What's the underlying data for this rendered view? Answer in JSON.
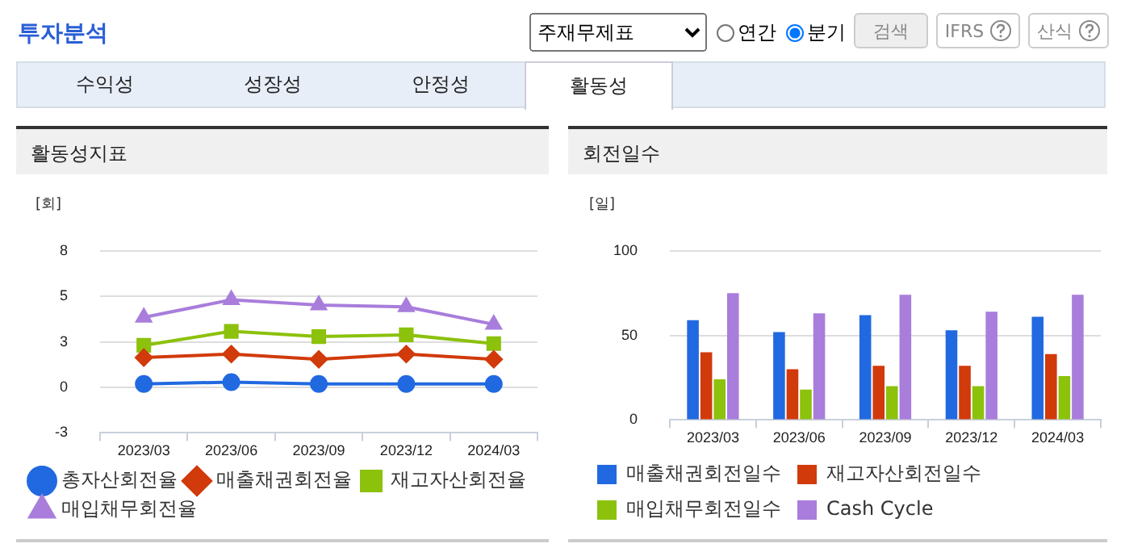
{
  "chart_data": [
    {
      "type": "line",
      "title": "활동성지표",
      "ylabel": "[회]",
      "annotations": [
        "투자분석",
        "주재무제표",
        "연간",
        "분기",
        "검색",
        "IFRS",
        "산식",
        "수익성",
        "성장성",
        "안정성",
        "활동성"
      ],
      "categories": [
        "2023/03",
        "2023/06",
        "2023/09",
        "2023/12",
        "2024/03"
      ],
      "series": [
        {
          "name": "총자산회전율",
          "color": "#2169e0",
          "marker": "circle",
          "values": [
            0.2,
            0.3,
            0.2,
            0.2,
            0.2
          ]
        },
        {
          "name": "매출채권회전율",
          "color": "#d13a0a",
          "marker": "diamond",
          "values": [
            1.7,
            1.9,
            1.6,
            1.9,
            1.6
          ]
        },
        {
          "name": "재고자산회전율",
          "color": "#8cc10c",
          "marker": "square",
          "values": [
            2.4,
            3.2,
            2.9,
            3.0,
            2.5
          ]
        },
        {
          "name": "매입채무회전율",
          "color": "#a87ddb",
          "marker": "triangle",
          "values": [
            4.0,
            5.0,
            4.7,
            4.6,
            3.6
          ]
        }
      ],
      "ylim": [
        -2.6,
        7.8
      ],
      "yticks": [
        {
          "value": -2.6,
          "label": "-3"
        },
        0,
        {
          "value": 2.6,
          "label": "3"
        },
        {
          "value": 5.2,
          "label": "5"
        },
        {
          "value": 7.8,
          "label": "8"
        }
      ],
      "grid": "y",
      "legend": "bottom"
    },
    {
      "type": "bar",
      "title": "회전일수",
      "ylabel": "[일]",
      "categories": [
        "2023/03",
        "2023/06",
        "2023/09",
        "2023/12",
        "2024/03"
      ],
      "series": [
        {
          "name": "매출채권회전일수",
          "color": "#2169e0",
          "values": [
            59,
            52,
            62,
            53,
            61
          ]
        },
        {
          "name": "재고자산회전일수",
          "color": "#d13a0a",
          "values": [
            40,
            30,
            32,
            32,
            39
          ]
        },
        {
          "name": "매입채무회전일수",
          "color": "#8cc10c",
          "values": [
            24,
            18,
            20,
            20,
            26
          ]
        },
        {
          "name": "Cash Cycle",
          "color": "#a87ddb",
          "values": [
            75,
            63,
            74,
            64,
            74
          ]
        }
      ],
      "ylim": [
        0,
        100
      ],
      "yticks": [
        0,
        50,
        100
      ],
      "grid": "y",
      "legend": "bottom"
    }
  ]
}
